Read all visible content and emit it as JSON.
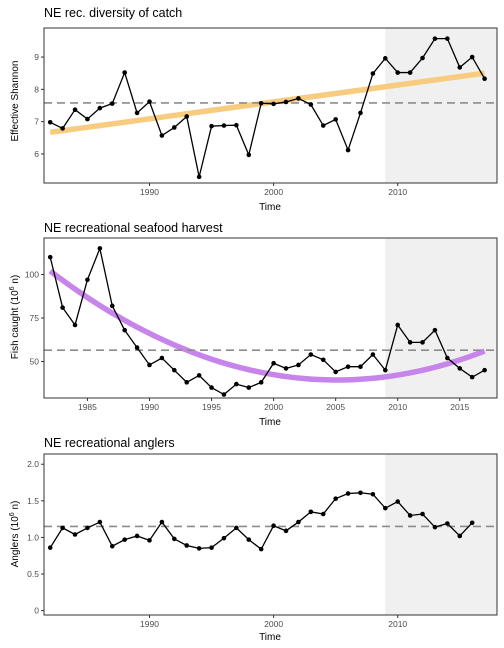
{
  "colors": {
    "shade": "#f0f0f0",
    "point_line": "#000000",
    "reference_line": "#8c8c8c",
    "trend_diversity": "#f8cc80",
    "trend_harvest": "#c784ea"
  },
  "chart_data": [
    {
      "type": "line",
      "title": "NE rec. diversity of catch",
      "xlabel": "Time",
      "ylabel": "Effective Shannon",
      "ylabel_sup": "",
      "ylabel_suffix": "",
      "xlim": [
        1981.5,
        2018
      ],
      "ylim": [
        5.1,
        9.9
      ],
      "xticks": [
        1990,
        2000,
        2010
      ],
      "xtick_labels": [
        "1990",
        "2000",
        "2010"
      ],
      "yticks": [
        6,
        7,
        8,
        9
      ],
      "ytick_labels": [
        "6",
        "7",
        "8",
        "9"
      ],
      "grid": false,
      "legend": "none",
      "shaded_x_range": [
        2009,
        2018
      ],
      "reference_y": 7.58,
      "trend": {
        "color": "trend_diversity",
        "x": [
          1982,
          2017
        ],
        "y": [
          6.67,
          8.5
        ],
        "degree": 1
      },
      "series": [
        {
          "x": [
            1982,
            1983,
            1984,
            1985,
            1986,
            1987,
            1988,
            1989,
            1990,
            1991,
            1992,
            1993,
            1994,
            1995,
            1996,
            1997,
            1998,
            1999,
            2000,
            2001,
            2002,
            2003,
            2004,
            2005,
            2006,
            2007,
            2008,
            2009,
            2010,
            2011,
            2012,
            2013,
            2014,
            2015,
            2016,
            2017
          ],
          "y": [
            6.98,
            6.79,
            7.37,
            7.08,
            7.42,
            7.56,
            8.52,
            7.27,
            7.62,
            6.57,
            6.82,
            7.16,
            5.29,
            6.86,
            6.88,
            6.89,
            5.97,
            7.57,
            7.55,
            7.61,
            7.72,
            7.53,
            6.88,
            7.07,
            6.12,
            7.27,
            8.49,
            8.96,
            8.52,
            8.52,
            8.97,
            9.57,
            9.57,
            8.68,
            9.0,
            8.33
          ]
        }
      ]
    },
    {
      "type": "line",
      "title": "NE recreational seafood harvest",
      "xlabel": "Time",
      "ylabel": "Fish caught (10",
      "ylabel_sup": "6",
      "ylabel_suffix": " n)",
      "xlim": [
        1981.5,
        2018
      ],
      "ylim": [
        29,
        121
      ],
      "xticks": [
        1985,
        1990,
        1995,
        2000,
        2005,
        2010,
        2015
      ],
      "xtick_labels": [
        "1985",
        "1990",
        "1995",
        "2000",
        "2005",
        "2010",
        "2015"
      ],
      "yticks": [
        50,
        75,
        100
      ],
      "ytick_labels": [
        "50",
        "75",
        "100"
      ],
      "grid": false,
      "legend": "none",
      "shaded_x_range": [
        2009,
        2018
      ],
      "reference_y": 56.5,
      "trend": {
        "color": "trend_harvest",
        "x": [
          1982,
          2004,
          2017
        ],
        "y": [
          102,
          39.5,
          56
        ],
        "degree": 2
      },
      "series": [
        {
          "x": [
            1982,
            1983,
            1984,
            1985,
            1986,
            1987,
            1988,
            1989,
            1990,
            1991,
            1992,
            1993,
            1994,
            1995,
            1996,
            1997,
            1998,
            1999,
            2000,
            2001,
            2002,
            2003,
            2004,
            2005,
            2006,
            2007,
            2008,
            2009,
            2010,
            2011,
            2012,
            2013,
            2014,
            2015,
            2016,
            2017
          ],
          "y": [
            110,
            81,
            71,
            97,
            115,
            82,
            68,
            58,
            48,
            52,
            45,
            38,
            42,
            35,
            31,
            37,
            35,
            38,
            49,
            46,
            48,
            54,
            51,
            44,
            47,
            47,
            54,
            45,
            71,
            61,
            61,
            68,
            52,
            46,
            41,
            45
          ]
        }
      ]
    },
    {
      "type": "line",
      "title": "NE recreational anglers",
      "xlabel": "Time",
      "ylabel": "Anglers (10",
      "ylabel_sup": "6",
      "ylabel_suffix": " n)",
      "xlim": [
        1981.5,
        2018
      ],
      "ylim": [
        -0.06,
        2.14
      ],
      "xticks": [
        1990,
        2000,
        2010
      ],
      "xtick_labels": [
        "1990",
        "2000",
        "2010"
      ],
      "yticks": [
        0,
        0.5,
        1.0,
        1.5,
        2.0
      ],
      "ytick_labels": [
        "0",
        "0.5",
        "1.0",
        "1.5",
        "2.0"
      ],
      "grid": false,
      "legend": "none",
      "shaded_x_range": [
        2009,
        2018
      ],
      "reference_y": 1.15,
      "trend": null,
      "series": [
        {
          "x": [
            1982,
            1983,
            1984,
            1985,
            1986,
            1987,
            1988,
            1989,
            1990,
            1991,
            1992,
            1993,
            1994,
            1995,
            1996,
            1997,
            1998,
            1999,
            2000,
            2001,
            2002,
            2003,
            2004,
            2005,
            2006,
            2007,
            2008,
            2009,
            2010,
            2011,
            2012,
            2013,
            2014,
            2015,
            2016
          ],
          "y": [
            0.86,
            1.13,
            1.04,
            1.13,
            1.21,
            0.88,
            0.97,
            1.02,
            0.96,
            1.21,
            0.98,
            0.89,
            0.85,
            0.86,
            0.99,
            1.13,
            0.97,
            0.84,
            1.16,
            1.09,
            1.21,
            1.35,
            1.32,
            1.53,
            1.6,
            1.61,
            1.59,
            1.4,
            1.49,
            1.3,
            1.32,
            1.14,
            1.19,
            1.02,
            1.2
          ]
        }
      ]
    }
  ]
}
